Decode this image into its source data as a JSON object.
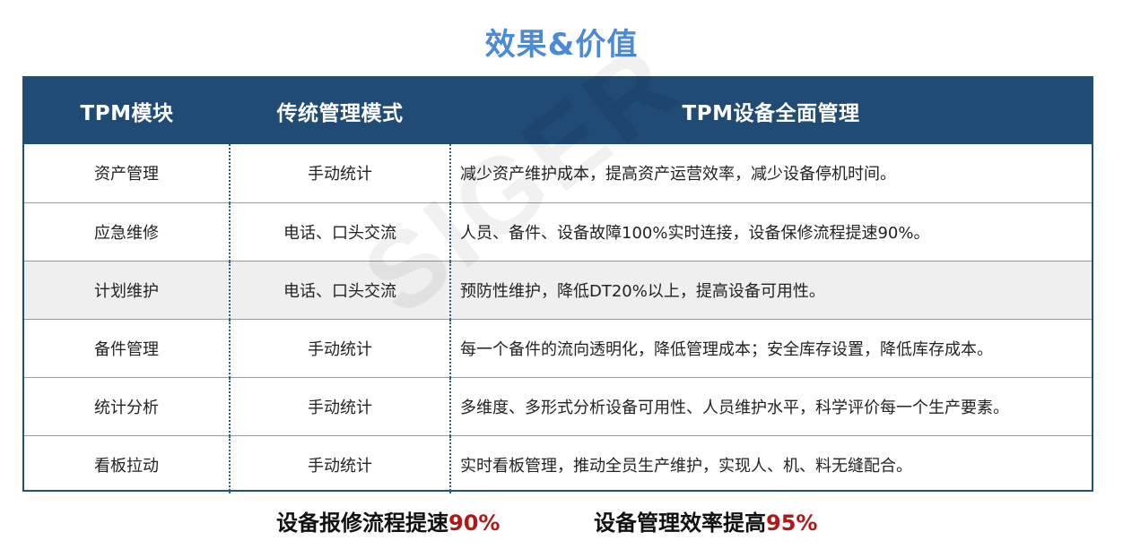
{
  "page": {
    "title": "效果&价值",
    "watermark": "SIGER"
  },
  "table": {
    "headers": [
      "TPM模块",
      "传统管理模式",
      "TPM设备全面管理"
    ],
    "rows": [
      {
        "module": "资产管理",
        "traditional": "手动统计",
        "tpm": "减少资产维护成本，提高资产运营效率，减少设备停机时间。"
      },
      {
        "module": "应急维修",
        "traditional": "电话、口头交流",
        "tpm": "人员、备件、设备故障100%实时连接，设备保修流程提速90%。"
      },
      {
        "module": "计划维护",
        "traditional": "电话、口头交流",
        "tpm": "预防性维护，降低DT20%以上，提高设备可用性。"
      },
      {
        "module": "备件管理",
        "traditional": "手动统计",
        "tpm": "每一个备件的流向透明化，降低管理成本；安全库存设置，降低库存成本。"
      },
      {
        "module": "统计分析",
        "traditional": "手动统计",
        "tpm": "多维度、多形式分析设备可用性、人员维护水平，科学评价每一个生产要素。"
      },
      {
        "module": "看板拉动",
        "traditional": "手动统计",
        "tpm": "实时看板管理，推动全员生产维护，实现人、机、料无缝配合。"
      }
    ]
  },
  "summary": {
    "item1_text": "设备报修流程提速",
    "item1_value": "90%",
    "item2_text": "设备管理效率提高",
    "item2_value": "95%"
  },
  "colors": {
    "title": "#4a8ad6",
    "header_bg": "#1f4b75",
    "highlight": "#b01818"
  }
}
